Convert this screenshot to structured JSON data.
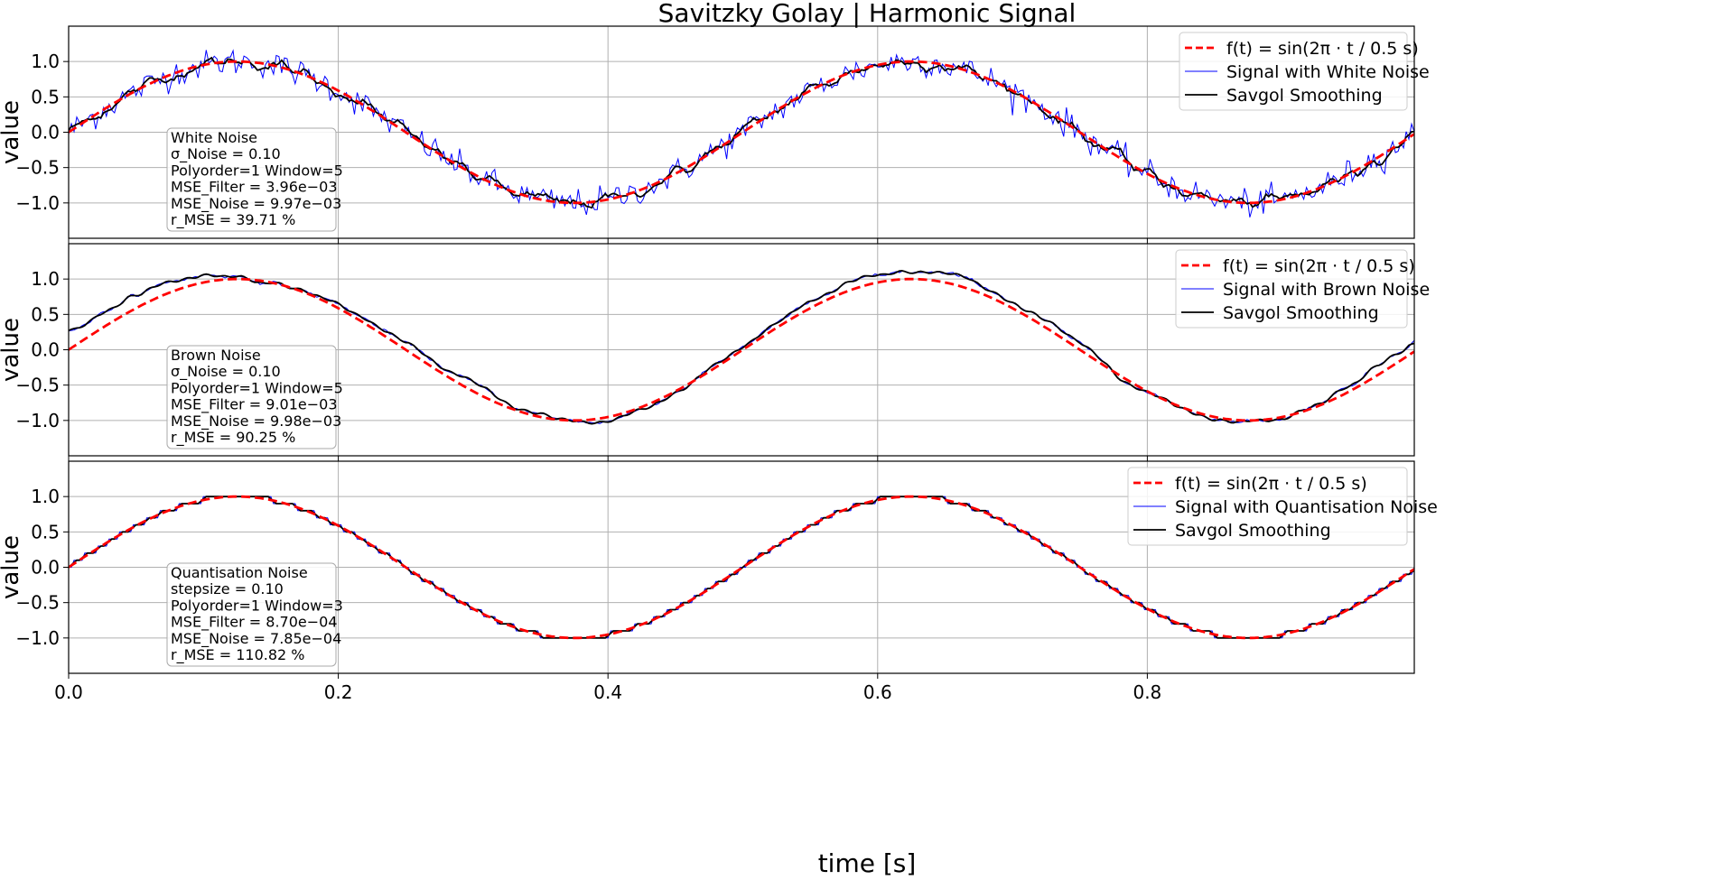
{
  "title": "Savitzky Golay | Harmonic Signal",
  "xlabel": "time [s]",
  "colors": {
    "clean": "#ff0000",
    "noisy": "#0000ff",
    "smoothed": "#000000",
    "grid": "#b0b0b0"
  },
  "chart_data": [
    {
      "type": "line",
      "noise": "white",
      "ylabel": "value",
      "xlim": [
        0,
        0.998
      ],
      "ylim": [
        -1.5,
        1.5
      ],
      "xticks": [
        0.0,
        0.2,
        0.4,
        0.6,
        0.8
      ],
      "yticks": [
        1.0,
        0.5,
        0.0,
        -0.5,
        -1.0
      ],
      "xtick_labels": [
        "0.0",
        "0.2",
        "0.4",
        "0.6",
        "0.8"
      ],
      "ytick_labels": [
        "1.0",
        "0.5",
        "0.0",
        "−0.5",
        "−1.0"
      ],
      "grid": true,
      "legend_position": "top-right",
      "series": [
        {
          "name": "f(t) = sin(2π · t / 0.5 s)",
          "function": "sin(2*pi*t/0.5)",
          "t_range": [
            0,
            0.998
          ],
          "style": "dashed",
          "color": "#ff0000"
        },
        {
          "name": "Signal with White Noise",
          "style": "solid-thin",
          "color": "#0000ff"
        },
        {
          "name": "Savgol Smoothing",
          "style": "solid",
          "color": "#000000"
        }
      ],
      "info_box": [
        "White Noise",
        "σ_Noise = 0.10",
        "Polyorder=1 Window=5",
        "MSE_Filter = 3.96e−03",
        "MSE_Noise = 9.97e−03",
        "r_MSE = 39.71 %"
      ]
    },
    {
      "type": "line",
      "noise": "brown",
      "ylabel": "value",
      "xlim": [
        0,
        0.998
      ],
      "ylim": [
        -1.5,
        1.5
      ],
      "xticks": [
        0.0,
        0.2,
        0.4,
        0.6,
        0.8
      ],
      "yticks": [
        1.0,
        0.5,
        0.0,
        -0.5,
        -1.0
      ],
      "xtick_labels": [
        "0.0",
        "0.2",
        "0.4",
        "0.6",
        "0.8"
      ],
      "ytick_labels": [
        "1.0",
        "0.5",
        "0.0",
        "−0.5",
        "−1.0"
      ],
      "grid": true,
      "legend_position": "top-right",
      "series": [
        {
          "name": "f(t) = sin(2π · t / 0.5 s)",
          "function": "sin(2*pi*t/0.5)",
          "t_range": [
            0,
            0.998
          ],
          "style": "dashed",
          "color": "#ff0000"
        },
        {
          "name": "Signal with Brown Noise",
          "style": "solid-thin",
          "color": "#0000ff"
        },
        {
          "name": "Savgol Smoothing",
          "style": "solid",
          "color": "#000000"
        }
      ],
      "drift_points": {
        "t": [
          0.0,
          0.1,
          0.15,
          0.2,
          0.3,
          0.4,
          0.5,
          0.6,
          0.65,
          0.7,
          0.8,
          0.9,
          0.95,
          0.998
        ],
        "offset": [
          0.26,
          0.1,
          0.0,
          0.05,
          0.1,
          -0.05,
          0.05,
          0.07,
          0.1,
          0.1,
          0.0,
          0.0,
          0.1,
          0.2
        ]
      },
      "info_box": [
        "Brown Noise",
        "σ_Noise = 0.10",
        "Polyorder=1 Window=5",
        "MSE_Filter = 9.01e−03",
        "MSE_Noise = 9.98e−03",
        "r_MSE = 90.25 %"
      ]
    },
    {
      "type": "line",
      "noise": "quantisation",
      "ylabel": "value",
      "xlim": [
        0,
        0.998
      ],
      "ylim": [
        -1.5,
        1.5
      ],
      "xticks": [
        0.0,
        0.2,
        0.4,
        0.6,
        0.8
      ],
      "yticks": [
        1.0,
        0.5,
        0.0,
        -0.5,
        -1.0
      ],
      "xtick_labels": [
        "0.0",
        "0.2",
        "0.4",
        "0.6",
        "0.8"
      ],
      "ytick_labels": [
        "1.0",
        "0.5",
        "0.0",
        "−0.5",
        "−1.0"
      ],
      "grid": true,
      "legend_position": "top-right",
      "quantisation_step": 0.1,
      "series": [
        {
          "name": "f(t) = sin(2π · t / 0.5 s)",
          "function": "sin(2*pi*t/0.5)",
          "t_range": [
            0,
            0.998
          ],
          "style": "dashed",
          "color": "#ff0000"
        },
        {
          "name": "Signal with Quantisation Noise",
          "style": "solid-thin",
          "color": "#0000ff"
        },
        {
          "name": "Savgol Smoothing",
          "style": "solid",
          "color": "#000000"
        }
      ],
      "info_box": [
        "Quantisation Noise",
        "stepsize = 0.10",
        "Polyorder=1 Window=3",
        "MSE_Filter = 8.70e−04",
        "MSE_Noise = 7.85e−04",
        "r_MSE = 110.82 %"
      ]
    }
  ]
}
